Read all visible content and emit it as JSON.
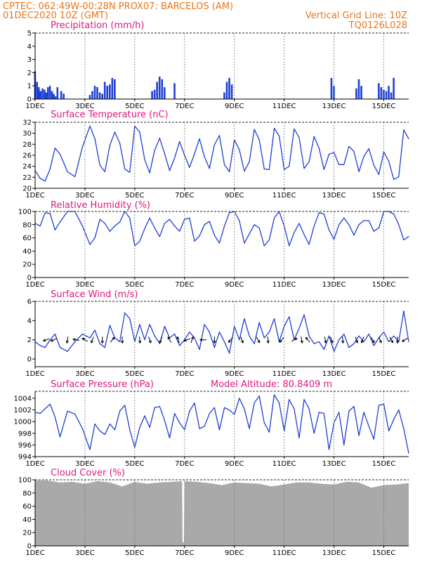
{
  "header": {
    "line1": "CPTEC:    062:49W-00:28N   PROX07: BARCELOS (AM)",
    "line2": "01DEC2020  10Z (GMT)",
    "grid_note": "Vertical Grid Line: 10Z",
    "model_code": "TQ0126L028"
  },
  "colors": {
    "header": "#e8761c",
    "panel_title": "#e0187e",
    "series": "#1f3fd6",
    "cloud": "#a9a9a9",
    "wind_arrow": "#000000"
  },
  "chart_data": [
    {
      "id": "precipitation",
      "type": "bar",
      "title": "Precipitation (mm/h)",
      "xlabel": "",
      "ylabel": "",
      "xlim": [
        0,
        15.0
      ],
      "ylim": [
        0,
        5
      ],
      "yticks": [
        0,
        1,
        2,
        3,
        4,
        5
      ],
      "xticks": [
        0,
        2,
        4,
        6,
        8,
        10,
        12,
        14
      ],
      "xticklabels": [
        "1DEC",
        "3DEC",
        "5DEC",
        "7DEC",
        "9DEC",
        "11DEC",
        "13DEC",
        "15DEC"
      ],
      "grid": "vertical-dashed",
      "bars": [
        [
          0.0,
          2.1
        ],
        [
          0.08,
          1.3
        ],
        [
          0.15,
          0.9
        ],
        [
          0.22,
          0.6
        ],
        [
          0.3,
          0.8
        ],
        [
          0.38,
          0.7
        ],
        [
          0.45,
          0.5
        ],
        [
          0.52,
          0.9
        ],
        [
          0.6,
          1.0
        ],
        [
          0.68,
          0.6
        ],
        [
          0.75,
          0.4
        ],
        [
          0.82,
          0.2
        ],
        [
          0.9,
          0.9
        ],
        [
          1.05,
          0.6
        ],
        [
          1.15,
          0.4
        ],
        [
          2.2,
          0.3
        ],
        [
          2.3,
          0.6
        ],
        [
          2.4,
          1.0
        ],
        [
          2.5,
          0.9
        ],
        [
          2.6,
          0.5
        ],
        [
          2.7,
          0.4
        ],
        [
          2.8,
          1.3
        ],
        [
          2.9,
          1.0
        ],
        [
          3.0,
          1.1
        ],
        [
          3.1,
          1.6
        ],
        [
          3.2,
          1.5
        ],
        [
          4.7,
          0.6
        ],
        [
          4.8,
          0.7
        ],
        [
          4.9,
          1.3
        ],
        [
          5.0,
          1.7
        ],
        [
          5.1,
          1.5
        ],
        [
          5.2,
          0.9
        ],
        [
          5.6,
          1.2
        ],
        [
          7.6,
          0.5
        ],
        [
          7.7,
          1.3
        ],
        [
          7.8,
          1.6
        ],
        [
          7.9,
          1.1
        ],
        [
          11.9,
          1.6
        ],
        [
          12.0,
          1.0
        ],
        [
          12.9,
          0.8
        ],
        [
          13.0,
          1.5
        ],
        [
          13.1,
          1.0
        ],
        [
          13.8,
          1.2
        ],
        [
          13.9,
          0.9
        ],
        [
          14.0,
          0.7
        ],
        [
          14.1,
          0.6
        ],
        [
          14.2,
          1.0
        ],
        [
          14.3,
          0.5
        ],
        [
          14.4,
          1.6
        ]
      ]
    },
    {
      "id": "temperature",
      "type": "line",
      "title": "Surface Temperature (nC)",
      "xlabel": "",
      "ylabel": "",
      "xlim": [
        0,
        15.0
      ],
      "ylim": [
        20,
        32
      ],
      "yticks": [
        20,
        22,
        24,
        26,
        28,
        30,
        32
      ],
      "xticks": [
        0,
        2,
        4,
        6,
        8,
        10,
        12,
        14
      ],
      "xticklabels": [
        "1DEC",
        "3DEC",
        "5DEC",
        "7DEC",
        "9DEC",
        "11DEC",
        "13DEC",
        "15DEC"
      ],
      "grid": "vertical-dashed",
      "x": [
        0.0,
        0.2,
        0.4,
        0.6,
        0.8,
        1.0,
        1.3,
        1.6,
        1.9,
        2.2,
        2.4,
        2.6,
        2.8,
        3.0,
        3.2,
        3.4,
        3.6,
        3.8,
        4.0,
        4.2,
        4.4,
        4.6,
        4.8,
        5.0,
        5.2,
        5.4,
        5.6,
        5.8,
        6.0,
        6.2,
        6.4,
        6.6,
        6.8,
        7.0,
        7.2,
        7.4,
        7.6,
        7.8,
        8.0,
        8.2,
        8.4,
        8.6,
        8.8,
        9.0,
        9.2,
        9.4,
        9.6,
        9.8,
        10.0,
        10.2,
        10.4,
        10.6,
        10.8,
        11.0,
        11.2,
        11.4,
        11.6,
        11.8,
        12.0,
        12.2,
        12.4,
        12.6,
        12.8,
        13.0,
        13.2,
        13.4,
        13.6,
        13.8,
        14.0,
        14.2,
        14.4,
        14.6,
        14.8,
        15.0
      ],
      "y": [
        23.2,
        21.8,
        21.3,
        23.5,
        27.3,
        26.2,
        23.0,
        22.1,
        27.5,
        31.3,
        29.0,
        24.2,
        23.0,
        27.8,
        30.2,
        28.2,
        23.5,
        22.9,
        31.3,
        30.2,
        25.2,
        22.8,
        26.9,
        29.1,
        26.3,
        23.2,
        25.5,
        28.5,
        26.0,
        23.8,
        26.3,
        29.0,
        25.7,
        23.6,
        27.9,
        29.6,
        24.3,
        23.0,
        28.8,
        27.0,
        23.1,
        24.8,
        30.7,
        28.8,
        23.5,
        23.4,
        30.9,
        29.5,
        23.4,
        24.0,
        30.8,
        29.2,
        23.6,
        24.8,
        29.4,
        27.3,
        23.4,
        26.2,
        26.5,
        24.3,
        24.3,
        27.6,
        26.7,
        23.0,
        25.8,
        27.2,
        24.2,
        22.5,
        26.6,
        24.9,
        21.6,
        22.1,
        30.6,
        29.0
      ]
    },
    {
      "id": "humidity",
      "type": "line",
      "title": "Relative Humidity (%)",
      "xlabel": "",
      "ylabel": "",
      "xlim": [
        0,
        15.0
      ],
      "ylim": [
        0,
        100
      ],
      "yticks": [
        0,
        20,
        40,
        60,
        80,
        100
      ],
      "xticks": [
        0,
        2,
        4,
        6,
        8,
        10,
        12,
        14
      ],
      "xticklabels": [
        "1DEC",
        "3DEC",
        "5DEC",
        "7DEC",
        "9DEC",
        "11DEC",
        "13DEC",
        "15DEC"
      ],
      "grid": "vertical-dashed",
      "x": [
        0.0,
        0.2,
        0.4,
        0.6,
        0.8,
        1.0,
        1.3,
        1.6,
        1.9,
        2.2,
        2.4,
        2.6,
        2.8,
        3.0,
        3.2,
        3.4,
        3.6,
        3.8,
        4.0,
        4.2,
        4.4,
        4.6,
        4.8,
        5.0,
        5.2,
        5.4,
        5.6,
        5.8,
        6.0,
        6.2,
        6.4,
        6.6,
        6.8,
        7.0,
        7.2,
        7.4,
        7.6,
        7.8,
        8.0,
        8.2,
        8.4,
        8.6,
        8.8,
        9.0,
        9.2,
        9.4,
        9.6,
        9.8,
        10.0,
        10.2,
        10.4,
        10.6,
        10.8,
        11.0,
        11.2,
        11.4,
        11.6,
        11.8,
        12.0,
        12.2,
        12.4,
        12.6,
        12.8,
        13.0,
        13.2,
        13.4,
        13.6,
        13.8,
        14.0,
        14.2,
        14.4,
        14.6,
        14.8,
        15.0
      ],
      "y": [
        82,
        78,
        98,
        97,
        72,
        84,
        100,
        100,
        78,
        50,
        60,
        88,
        82,
        70,
        78,
        84,
        100,
        90,
        48,
        55,
        74,
        90,
        75,
        62,
        82,
        88,
        78,
        70,
        88,
        90,
        55,
        63,
        80,
        85,
        64,
        52,
        78,
        98,
        100,
        86,
        52,
        66,
        80,
        75,
        48,
        57,
        90,
        100,
        78,
        48,
        68,
        82,
        65,
        50,
        78,
        98,
        96,
        72,
        58,
        80,
        90,
        80,
        64,
        80,
        86,
        86,
        70,
        75,
        100,
        100,
        96,
        80,
        57,
        62
      ]
    },
    {
      "id": "wind",
      "type": "line",
      "title": "Surface Wind (m/s)",
      "xlabel": "",
      "ylabel": "",
      "xlim": [
        0,
        15.0
      ],
      "ylim": [
        -0.8,
        6
      ],
      "yticks": [
        0,
        2,
        4,
        6
      ],
      "xticks": [
        0,
        2,
        4,
        6,
        8,
        10,
        12,
        14
      ],
      "xticklabels": [
        "1DEC",
        "3DEC",
        "5DEC",
        "7DEC",
        "9DEC",
        "11DEC",
        "13DEC",
        "15DEC"
      ],
      "grid": "vertical-dashed",
      "x": [
        0.0,
        0.2,
        0.4,
        0.6,
        0.8,
        1.0,
        1.3,
        1.6,
        1.9,
        2.2,
        2.4,
        2.6,
        2.8,
        3.0,
        3.2,
        3.4,
        3.6,
        3.8,
        4.0,
        4.2,
        4.4,
        4.6,
        4.8,
        5.0,
        5.2,
        5.4,
        5.6,
        5.8,
        6.0,
        6.2,
        6.4,
        6.6,
        6.8,
        7.0,
        7.2,
        7.4,
        7.6,
        7.8,
        8.0,
        8.2,
        8.4,
        8.6,
        8.8,
        9.0,
        9.2,
        9.4,
        9.6,
        9.8,
        10.0,
        10.2,
        10.4,
        10.6,
        10.8,
        11.0,
        11.2,
        11.4,
        11.6,
        11.8,
        12.0,
        12.2,
        12.4,
        12.6,
        12.8,
        13.0,
        13.2,
        13.4,
        13.6,
        13.8,
        14.0,
        14.2,
        14.4,
        14.6,
        14.8,
        15.0
      ],
      "y": [
        1.8,
        1.4,
        1.2,
        2.0,
        2.6,
        1.2,
        0.8,
        1.8,
        2.6,
        2.2,
        3.0,
        1.6,
        1.2,
        3.5,
        2.2,
        1.8,
        4.8,
        4.2,
        1.8,
        3.6,
        2.0,
        3.6,
        2.4,
        1.6,
        3.4,
        2.2,
        2.6,
        1.4,
        2.0,
        2.8,
        2.2,
        1.0,
        3.6,
        2.8,
        1.2,
        2.8,
        1.8,
        0.6,
        3.4,
        2.0,
        4.2,
        2.4,
        1.6,
        3.8,
        2.2,
        2.8,
        4.2,
        1.8,
        3.4,
        4.4,
        2.0,
        3.2,
        4.6,
        2.4,
        1.6,
        1.8,
        1.0,
        2.4,
        0.8,
        2.0,
        2.6,
        1.2,
        1.6,
        2.4,
        1.8,
        2.6,
        1.4,
        2.2,
        2.8,
        1.8,
        2.4,
        1.8,
        5.0,
        1.8
      ]
    },
    {
      "id": "pressure",
      "type": "line",
      "title": "Surface Pressure (hPa)",
      "annotation": "Model Altitude: 80.8409  m",
      "xlabel": "",
      "ylabel": "",
      "xlim": [
        0,
        15.0
      ],
      "ylim": [
        994,
        1005.2
      ],
      "yticks": [
        994,
        996,
        998,
        1000,
        1002,
        1004
      ],
      "xticks": [
        0,
        2,
        4,
        6,
        8,
        10,
        12,
        14
      ],
      "xticklabels": [
        "1DEC",
        "3DEC",
        "5DEC",
        "7DEC",
        "9DEC",
        "11DEC",
        "13DEC",
        "15DEC"
      ],
      "grid": "vertical-dashed",
      "x": [
        0.0,
        0.2,
        0.4,
        0.6,
        0.8,
        1.0,
        1.3,
        1.6,
        1.9,
        2.2,
        2.4,
        2.6,
        2.8,
        3.0,
        3.2,
        3.4,
        3.6,
        3.8,
        4.0,
        4.2,
        4.4,
        4.6,
        4.8,
        5.0,
        5.2,
        5.4,
        5.6,
        5.8,
        6.0,
        6.2,
        6.4,
        6.6,
        6.8,
        7.0,
        7.2,
        7.4,
        7.6,
        7.8,
        8.0,
        8.2,
        8.4,
        8.6,
        8.8,
        9.0,
        9.2,
        9.4,
        9.6,
        9.8,
        10.0,
        10.2,
        10.4,
        10.6,
        10.8,
        11.0,
        11.2,
        11.4,
        11.6,
        11.8,
        12.0,
        12.2,
        12.4,
        12.6,
        12.8,
        13.0,
        13.2,
        13.4,
        13.6,
        13.8,
        14.0,
        14.2,
        14.4,
        14.6,
        14.8,
        15.0
      ],
      "y": [
        1001.6,
        1001.4,
        1002.2,
        1003.0,
        1000.8,
        997.4,
        1001.8,
        1001.3,
        998.8,
        995.2,
        999.6,
        998.4,
        997.8,
        999.6,
        998.6,
        1001.8,
        1002.8,
        998.6,
        995.6,
        999.0,
        1001.0,
        999.0,
        1002.4,
        1002.6,
        1000.2,
        997.2,
        1001.4,
        999.8,
        998.6,
        1001.8,
        1003.2,
        998.8,
        999.2,
        1001.4,
        1002.4,
        998.6,
        1002.4,
        1002.0,
        1001.2,
        1004.0,
        1002.2,
        998.8,
        1003.2,
        1004.4,
        999.8,
        998.2,
        1004.6,
        1003.2,
        998.4,
        1003.8,
        1002.2,
        997.2,
        1003.8,
        1002.2,
        998.0,
        1001.6,
        1001.4,
        995.2,
        999.8,
        1001.6,
        996.0,
        1001.8,
        1002.6,
        997.6,
        1001.6,
        999.2,
        997.0,
        1002.8,
        1003.0,
        998.4,
        1000.4,
        1002.0,
        998.8,
        994.6
      ]
    },
    {
      "id": "cloud",
      "type": "area",
      "title": "Cloud Cover (%)",
      "xlabel": "",
      "ylabel": "",
      "xlim": [
        0,
        15.0
      ],
      "ylim": [
        0,
        100
      ],
      "yticks": [
        0,
        20,
        40,
        60,
        80,
        100
      ],
      "xticks": [
        0,
        2,
        4,
        6,
        8,
        10,
        12,
        14
      ],
      "xticklabels": [
        "1DEC",
        "3DEC",
        "5DEC",
        "7DEC",
        "9DEC",
        "11DEC",
        "13DEC",
        "15DEC"
      ],
      "grid": "vertical-dashed",
      "x": [
        0.0,
        0.5,
        1.0,
        1.5,
        2.0,
        2.5,
        3.0,
        3.5,
        4.0,
        4.5,
        5.0,
        5.5,
        5.9,
        5.92,
        5.98,
        6.0,
        6.5,
        7.0,
        7.5,
        8.0,
        8.5,
        9.0,
        9.5,
        10.0,
        10.5,
        11.0,
        11.5,
        12.0,
        12.5,
        13.0,
        13.5,
        14.0,
        14.5,
        15.0
      ],
      "y": [
        99,
        99,
        96,
        97,
        94,
        98,
        96,
        90,
        97,
        94,
        96,
        97,
        98,
        5,
        5,
        98,
        97,
        95,
        92,
        96,
        95,
        94,
        90,
        93,
        96,
        96,
        94,
        93,
        97,
        96,
        88,
        92,
        93,
        95
      ]
    }
  ],
  "wind_arrows": [
    {
      "x": 0.45,
      "dir": 250
    },
    {
      "x": 0.75,
      "dir": 245
    },
    {
      "x": 1.3,
      "dir": 190
    },
    {
      "x": 1.65,
      "dir": 280
    },
    {
      "x": 2.0,
      "dir": 300
    },
    {
      "x": 2.3,
      "dir": 200
    },
    {
      "x": 2.7,
      "dir": 180
    },
    {
      "x": 3.1,
      "dir": 40
    },
    {
      "x": 3.5,
      "dir": 180
    },
    {
      "x": 4.2,
      "dir": 175
    },
    {
      "x": 4.6,
      "dir": 160
    },
    {
      "x": 5.05,
      "dir": 200
    },
    {
      "x": 5.4,
      "dir": 330
    },
    {
      "x": 5.75,
      "dir": 340
    },
    {
      "x": 6.1,
      "dir": 250
    },
    {
      "x": 6.3,
      "dir": 20
    },
    {
      "x": 6.75,
      "dir": 270
    },
    {
      "x": 7.2,
      "dir": 180
    },
    {
      "x": 7.85,
      "dir": 220
    },
    {
      "x": 8.3,
      "dir": 160
    },
    {
      "x": 8.95,
      "dir": 150
    },
    {
      "x": 9.35,
      "dir": 175
    },
    {
      "x": 9.9,
      "dir": 220
    },
    {
      "x": 10.4,
      "dir": 60
    },
    {
      "x": 10.7,
      "dir": 170
    },
    {
      "x": 10.95,
      "dir": 320
    },
    {
      "x": 11.65,
      "dir": 170
    },
    {
      "x": 11.9,
      "dir": 160
    },
    {
      "x": 12.35,
      "dir": 175
    },
    {
      "x": 12.9,
      "dir": 160
    },
    {
      "x": 13.15,
      "dir": 200
    },
    {
      "x": 13.55,
      "dir": 150
    },
    {
      "x": 13.85,
      "dir": 160
    },
    {
      "x": 14.3,
      "dir": 150
    },
    {
      "x": 14.55,
      "dir": 180
    },
    {
      "x": 14.85,
      "dir": 240
    }
  ]
}
